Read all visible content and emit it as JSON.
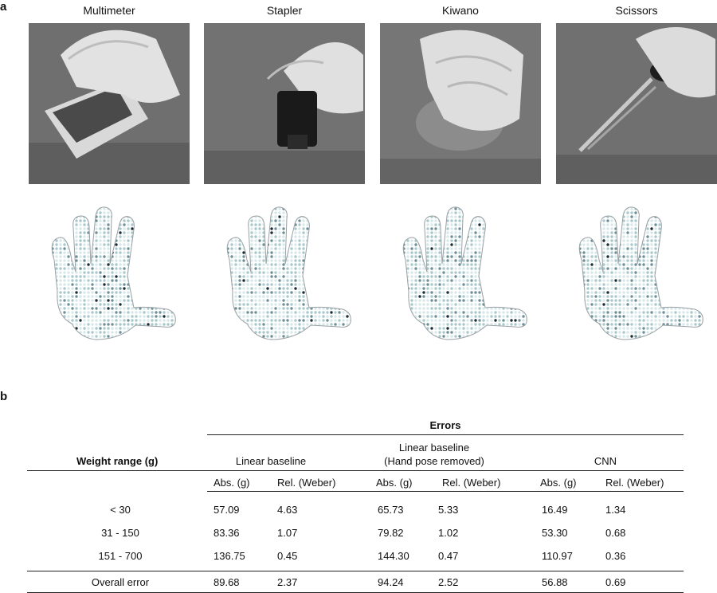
{
  "panel_a": {
    "letter": "a",
    "objects": [
      {
        "name": "Multimeter",
        "icon": "multimeter-photo"
      },
      {
        "name": "Stapler",
        "icon": "stapler-photo"
      },
      {
        "name": "Kiwano",
        "icon": "kiwano-photo"
      },
      {
        "name": "Scissors",
        "icon": "scissors-photo"
      }
    ]
  },
  "panel_b": {
    "letter": "b",
    "group_header": "Errors",
    "row_header": "Weight range  (g)",
    "methods": [
      {
        "line1": "Linear baseline",
        "line2": ""
      },
      {
        "line1": "Linear baseline",
        "line2": "(Hand pose removed)"
      },
      {
        "line1": "CNN",
        "line2": ""
      }
    ],
    "sub_headers": [
      "Abs. (g)",
      "Rel. (Weber)",
      "Abs. (g)",
      "Rel. (Weber)",
      "Abs. (g)",
      "Rel. (Weber)"
    ],
    "rows": [
      {
        "range": "< 30",
        "values": [
          "57.09",
          "4.63",
          "65.73",
          "5.33",
          "16.49",
          "1.34"
        ]
      },
      {
        "range": "31 - 150",
        "values": [
          "83.36",
          "1.07",
          "79.82",
          "1.02",
          "53.30",
          "0.68"
        ]
      },
      {
        "range": "151 - 700",
        "values": [
          "136.75",
          "0.45",
          "144.30",
          "0.47",
          "110.97",
          "0.36"
        ]
      }
    ],
    "overall": {
      "range": "Overall error",
      "values": [
        "89.68",
        "2.37",
        "94.24",
        "2.52",
        "56.88",
        "0.69"
      ]
    }
  },
  "colors": {
    "sensor_dark": "#1c2b34",
    "sensor_light": "#cfe3e4",
    "outline": "#9aa0a4"
  }
}
